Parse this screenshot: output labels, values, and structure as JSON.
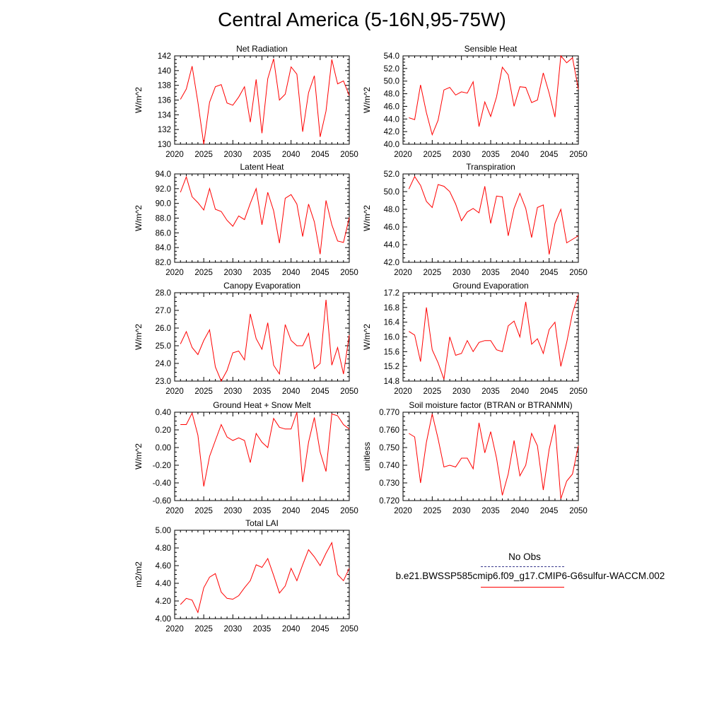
{
  "title": "Central America (5-16N,95-75W)",
  "colors": {
    "series_line": "#ff0000",
    "obs_line": "#3a3a8c",
    "axis": "#000000"
  },
  "legend": {
    "obs_label": "No Obs",
    "case_label": "b.e21.BWSSP585cmip6.f09_g17.CMIP6-G6sulfur-WACCM.002"
  },
  "chart_data": [
    {
      "type": "line",
      "title": "Net Radiation",
      "ylabel": "W/m^2",
      "xlim": [
        2020,
        2050
      ],
      "ylim": [
        130,
        142
      ],
      "xticks": [
        "2020",
        "2025",
        "2030",
        "2035",
        "2040",
        "2045",
        "2050"
      ],
      "yticks": [
        "130",
        "132",
        "134",
        "136",
        "138",
        "140",
        "142"
      ],
      "x": [
        2021,
        2022,
        2023,
        2024,
        2025,
        2026,
        2027,
        2028,
        2029,
        2030,
        2031,
        2032,
        2033,
        2034,
        2035,
        2036,
        2037,
        2038,
        2039,
        2040,
        2041,
        2042,
        2043,
        2044,
        2045,
        2046,
        2047,
        2048,
        2049,
        2050
      ],
      "y": [
        136.1,
        137.5,
        140.6,
        135.7,
        130.0,
        135.7,
        137.8,
        138.1,
        135.6,
        135.3,
        136.4,
        137.8,
        133.0,
        138.8,
        131.5,
        138.9,
        141.6,
        136.0,
        136.8,
        140.5,
        139.5,
        131.7,
        137.0,
        139.3,
        131.0,
        134.5,
        141.5,
        138.2,
        138.6,
        136.6
      ]
    },
    {
      "type": "line",
      "title": "Sensible Heat",
      "ylabel": "W/m^2",
      "xlim": [
        2020,
        2050
      ],
      "ylim": [
        40,
        54
      ],
      "xticks": [
        "2020",
        "2025",
        "2030",
        "2035",
        "2040",
        "2045",
        "2050"
      ],
      "yticks": [
        "40.0",
        "42.0",
        "44.0",
        "46.0",
        "48.0",
        "50.0",
        "52.0",
        "54.0"
      ],
      "x": [
        2021,
        2022,
        2023,
        2024,
        2025,
        2026,
        2027,
        2028,
        2029,
        2030,
        2031,
        2032,
        2033,
        2034,
        2035,
        2036,
        2037,
        2038,
        2039,
        2040,
        2041,
        2042,
        2043,
        2044,
        2045,
        2046,
        2047,
        2048,
        2049,
        2050
      ],
      "y": [
        44.2,
        43.9,
        49.4,
        45.0,
        41.5,
        43.8,
        48.6,
        49.0,
        47.8,
        48.3,
        48.1,
        49.9,
        42.8,
        46.7,
        44.4,
        47.5,
        52.2,
        51.0,
        46.0,
        49.1,
        49.0,
        46.6,
        47.0,
        51.3,
        48.1,
        44.3,
        54.0,
        52.9,
        53.7,
        48.7
      ]
    },
    {
      "type": "line",
      "title": "Latent Heat",
      "ylabel": "W/m^2",
      "xlim": [
        2020,
        2050
      ],
      "ylim": [
        82,
        94
      ],
      "xticks": [
        "2020",
        "2025",
        "2030",
        "2035",
        "2040",
        "2045",
        "2050"
      ],
      "yticks": [
        "82.0",
        "84.0",
        "86.0",
        "88.0",
        "90.0",
        "92.0",
        "94.0"
      ],
      "x": [
        2021,
        2022,
        2023,
        2024,
        2025,
        2026,
        2027,
        2028,
        2029,
        2030,
        2031,
        2032,
        2033,
        2034,
        2035,
        2036,
        2037,
        2038,
        2039,
        2040,
        2041,
        2042,
        2043,
        2044,
        2045,
        2046,
        2047,
        2048,
        2049,
        2050
      ],
      "y": [
        91.5,
        93.6,
        90.9,
        90.1,
        89.1,
        92.0,
        89.2,
        88.9,
        87.7,
        86.9,
        88.3,
        87.8,
        90.0,
        92.0,
        87.1,
        91.5,
        89.0,
        84.6,
        90.7,
        91.2,
        89.9,
        85.5,
        89.9,
        87.5,
        83.1,
        90.4,
        87.1,
        84.9,
        84.7,
        88.1
      ]
    },
    {
      "type": "line",
      "title": "Transpiration",
      "ylabel": "W/m^2",
      "xlim": [
        2020,
        2050
      ],
      "ylim": [
        42,
        52
      ],
      "xticks": [
        "2020",
        "2025",
        "2030",
        "2035",
        "2040",
        "2045",
        "2050"
      ],
      "yticks": [
        "42.0",
        "44.0",
        "46.0",
        "48.0",
        "50.0",
        "52.0"
      ],
      "x": [
        2021,
        2022,
        2023,
        2024,
        2025,
        2026,
        2027,
        2028,
        2029,
        2030,
        2031,
        2032,
        2033,
        2034,
        2035,
        2036,
        2037,
        2038,
        2039,
        2040,
        2041,
        2042,
        2043,
        2044,
        2045,
        2046,
        2047,
        2048,
        2049,
        2050
      ],
      "y": [
        50.3,
        51.7,
        50.7,
        48.9,
        48.2,
        50.8,
        50.6,
        50.0,
        48.6,
        46.7,
        47.7,
        48.1,
        47.6,
        50.6,
        46.4,
        49.5,
        49.4,
        45.0,
        48.1,
        49.8,
        48.1,
        44.8,
        48.2,
        48.5,
        42.9,
        46.4,
        48.0,
        44.2,
        44.6,
        45.0
      ]
    },
    {
      "type": "line",
      "title": "Canopy Evaporation",
      "ylabel": "W/m^2",
      "xlim": [
        2020,
        2050
      ],
      "ylim": [
        23,
        28
      ],
      "xticks": [
        "2020",
        "2025",
        "2030",
        "2035",
        "2040",
        "2045",
        "2050"
      ],
      "yticks": [
        "23.0",
        "24.0",
        "25.0",
        "26.0",
        "27.0",
        "28.0"
      ],
      "x": [
        2021,
        2022,
        2023,
        2024,
        2025,
        2026,
        2027,
        2028,
        2029,
        2030,
        2031,
        2032,
        2033,
        2034,
        2035,
        2036,
        2037,
        2038,
        2039,
        2040,
        2041,
        2042,
        2043,
        2044,
        2045,
        2046,
        2047,
        2048,
        2049,
        2050
      ],
      "y": [
        25.1,
        25.8,
        24.9,
        24.5,
        25.3,
        25.9,
        23.8,
        23.0,
        23.6,
        24.6,
        24.7,
        24.2,
        26.8,
        25.4,
        24.8,
        26.3,
        23.9,
        23.4,
        26.2,
        25.3,
        25.0,
        25.0,
        25.7,
        23.7,
        24.0,
        27.6,
        23.9,
        24.9,
        23.4,
        25.6
      ]
    },
    {
      "type": "line",
      "title": "Ground Evaporation",
      "ylabel": "W/m^2",
      "xlim": [
        2020,
        2050
      ],
      "ylim": [
        14.8,
        17.2
      ],
      "xticks": [
        "2020",
        "2025",
        "2030",
        "2035",
        "2040",
        "2045",
        "2050"
      ],
      "yticks": [
        "14.8",
        "15.2",
        "15.6",
        "16.0",
        "16.4",
        "16.8",
        "17.2"
      ],
      "x": [
        2021,
        2022,
        2023,
        2024,
        2025,
        2026,
        2027,
        2028,
        2029,
        2030,
        2031,
        2032,
        2033,
        2034,
        2035,
        2036,
        2037,
        2038,
        2039,
        2040,
        2041,
        2042,
        2043,
        2044,
        2045,
        2046,
        2047,
        2048,
        2049,
        2050
      ],
      "y": [
        16.15,
        16.05,
        15.33,
        16.8,
        15.65,
        15.3,
        14.85,
        16.0,
        15.5,
        15.55,
        15.9,
        15.6,
        15.85,
        15.9,
        15.9,
        15.65,
        15.6,
        16.3,
        16.43,
        16.0,
        16.95,
        15.8,
        15.95,
        15.55,
        16.2,
        16.4,
        15.2,
        15.85,
        16.65,
        17.15
      ]
    },
    {
      "type": "line",
      "title": "Ground Heat + Snow Melt",
      "ylabel": "W/m^2",
      "xlim": [
        2020,
        2050
      ],
      "ylim": [
        -0.6,
        0.4
      ],
      "xticks": [
        "2020",
        "2025",
        "2030",
        "2035",
        "2040",
        "2045",
        "2050"
      ],
      "yticks": [
        "-0.60",
        "-0.40",
        "-0.20",
        "0.00",
        "0.20",
        "0.40"
      ],
      "x": [
        2021,
        2022,
        2023,
        2024,
        2025,
        2026,
        2027,
        2028,
        2029,
        2030,
        2031,
        2032,
        2033,
        2034,
        2035,
        2036,
        2037,
        2038,
        2039,
        2040,
        2041,
        2042,
        2043,
        2044,
        2045,
        2046,
        2047,
        2048,
        2049,
        2050
      ],
      "y": [
        0.26,
        0.26,
        0.39,
        0.14,
        -0.44,
        -0.1,
        0.08,
        0.26,
        0.12,
        0.08,
        0.11,
        0.08,
        -0.17,
        0.16,
        0.06,
        0.0,
        0.33,
        0.23,
        0.21,
        0.21,
        0.4,
        -0.39,
        0.06,
        0.34,
        -0.05,
        -0.27,
        0.38,
        0.36,
        0.26,
        0.21
      ]
    },
    {
      "type": "line",
      "title": "Soil moisture factor (BTRAN or BTRANMN)",
      "ylabel": "unitless",
      "xlim": [
        2020,
        2050
      ],
      "ylim": [
        0.72,
        0.77
      ],
      "xticks": [
        "2020",
        "2025",
        "2030",
        "2035",
        "2040",
        "2045",
        "2050"
      ],
      "yticks": [
        "0.720",
        "0.730",
        "0.740",
        "0.750",
        "0.760",
        "0.770"
      ],
      "x": [
        2021,
        2022,
        2023,
        2024,
        2025,
        2026,
        2027,
        2028,
        2029,
        2030,
        2031,
        2032,
        2033,
        2034,
        2035,
        2036,
        2037,
        2038,
        2039,
        2040,
        2041,
        2042,
        2043,
        2044,
        2045,
        2046,
        2047,
        2048,
        2049,
        2050
      ],
      "y": [
        0.758,
        0.756,
        0.73,
        0.753,
        0.769,
        0.755,
        0.739,
        0.74,
        0.739,
        0.744,
        0.744,
        0.738,
        0.764,
        0.747,
        0.759,
        0.744,
        0.723,
        0.735,
        0.754,
        0.734,
        0.74,
        0.758,
        0.751,
        0.726,
        0.749,
        0.763,
        0.721,
        0.731,
        0.735,
        0.751
      ]
    },
    {
      "type": "line",
      "title": "Total LAI",
      "ylabel": "m2/m2",
      "xlim": [
        2020,
        2050
      ],
      "ylim": [
        4.0,
        5.0
      ],
      "xticks": [
        "2020",
        "2025",
        "2030",
        "2035",
        "2040",
        "2045",
        "2050"
      ],
      "yticks": [
        "4.00",
        "4.20",
        "4.40",
        "4.60",
        "4.80",
        "5.00"
      ],
      "x": [
        2021,
        2022,
        2023,
        2024,
        2025,
        2026,
        2027,
        2028,
        2029,
        2030,
        2031,
        2032,
        2033,
        2034,
        2035,
        2036,
        2037,
        2038,
        2039,
        2040,
        2041,
        2042,
        2043,
        2044,
        2045,
        2046,
        2047,
        2048,
        2049,
        2050
      ],
      "y": [
        4.16,
        4.23,
        4.21,
        4.07,
        4.35,
        4.47,
        4.51,
        4.3,
        4.23,
        4.22,
        4.26,
        4.35,
        4.43,
        4.61,
        4.58,
        4.68,
        4.49,
        4.29,
        4.37,
        4.57,
        4.43,
        4.61,
        4.78,
        4.7,
        4.6,
        4.74,
        4.86,
        4.5,
        4.43,
        4.57
      ]
    }
  ]
}
